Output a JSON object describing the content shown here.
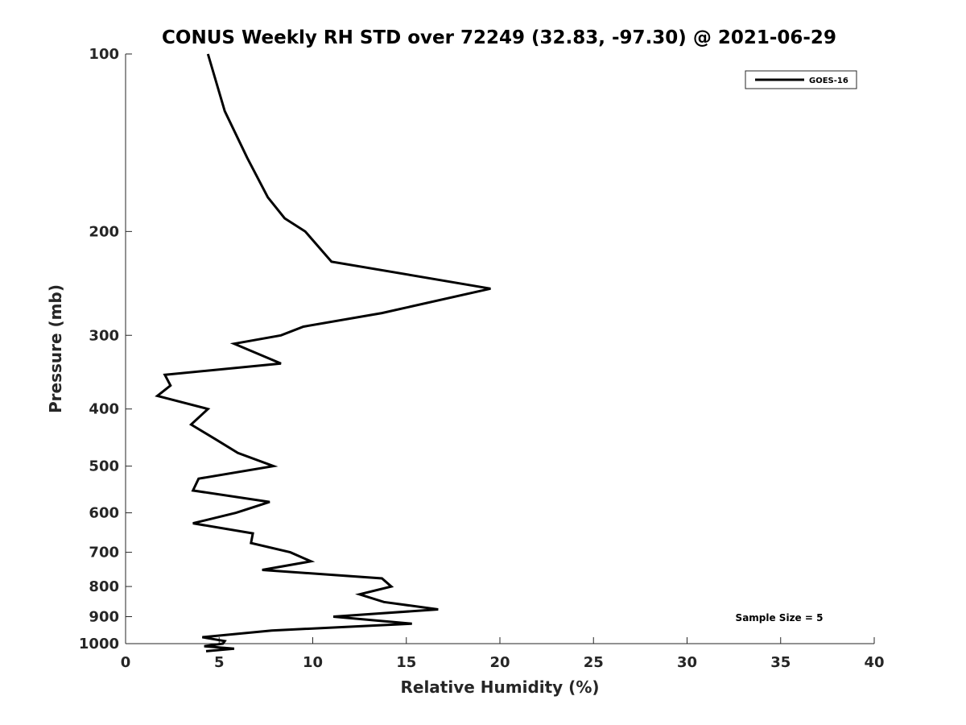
{
  "chart_data": {
    "type": "line",
    "title": "CONUS Weekly RH STD over 72249 (32.83, -97.30) @ 2021-06-29",
    "xlabel": "Relative Humidity (%)",
    "ylabel": "Pressure (mb)",
    "xlim": [
      0,
      40
    ],
    "ylim": [
      100,
      1000
    ],
    "yscale": "log",
    "y_reversed": true,
    "x_ticks": [
      0,
      5,
      10,
      15,
      20,
      25,
      30,
      35,
      40
    ],
    "y_ticks": [
      100,
      200,
      300,
      400,
      500,
      600,
      700,
      800,
      900,
      1000
    ],
    "grid": false,
    "legend_position": "top-right",
    "annotation": "Sample Size = 5",
    "series": [
      {
        "name": "GOES-16",
        "color": "#000000",
        "x": [
          4.4,
          5.3,
          6.5,
          7.6,
          8.5,
          9.6,
          11.0,
          19.5,
          13.7,
          9.5,
          8.3,
          5.8,
          8.3,
          2.1,
          2.4,
          1.7,
          4.4,
          3.5,
          4.8,
          6.0,
          7.9,
          3.9,
          3.6,
          7.7,
          5.9,
          3.6,
          6.8,
          6.7,
          8.8,
          9.9,
          7.3,
          13.7,
          14.2,
          12.5,
          13.8,
          16.7,
          11.1,
          15.3,
          7.8,
          4.1,
          5.3,
          5.2,
          4.2,
          5.8,
          4.3
        ],
        "y": [
          100,
          125,
          150,
          175,
          190,
          200,
          225,
          250,
          275,
          290,
          300,
          310,
          335,
          350,
          365,
          380,
          400,
          425,
          450,
          475,
          500,
          525,
          550,
          575,
          600,
          625,
          650,
          675,
          700,
          725,
          750,
          775,
          800,
          825,
          850,
          875,
          900,
          925,
          950,
          975,
          990,
          1000,
          1010,
          1020,
          1030
        ]
      }
    ]
  }
}
